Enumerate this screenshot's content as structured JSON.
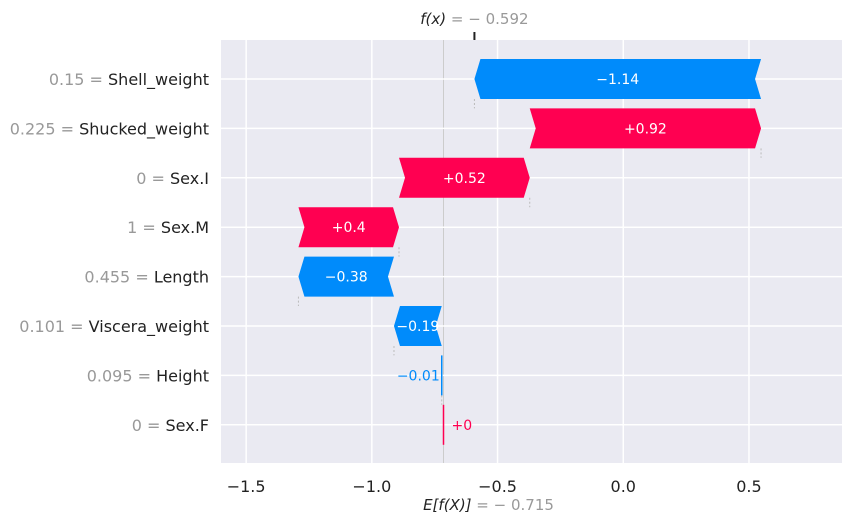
{
  "chart_data": {
    "type": "waterfall",
    "fx_label": "f(x)",
    "fx_value_text": " = − 0.592",
    "efx_label": "E[f(X)]",
    "efx_value_text": " = − 0.715",
    "base_value": -0.715,
    "final_value": -0.592,
    "xlim": [
      -1.6,
      0.87
    ],
    "xticks": [
      -1.5,
      -1.0,
      -0.5,
      0.0,
      0.5
    ],
    "xtick_labels": [
      "−1.5",
      "−1.0",
      "−0.5",
      "0.0",
      "0.5"
    ],
    "grid": true,
    "colors": {
      "positive": "#ff0051",
      "negative": "#008bfb",
      "background": "#eaeaf2",
      "grid": "#ffffff",
      "value_label": "#999999",
      "text": "#222222"
    },
    "features": [
      {
        "value": "0.15",
        "name": "Shell_weight",
        "shap": -1.14,
        "label": "−1.14",
        "start": 0.548,
        "end": -0.592
      },
      {
        "value": "0.225",
        "name": "Shucked_weight",
        "shap": 0.92,
        "label": "+0.92",
        "start": -0.372,
        "end": 0.548
      },
      {
        "value": "0",
        "name": "Sex.I",
        "shap": 0.52,
        "label": "+0.52",
        "start": -0.892,
        "end": -0.372
      },
      {
        "value": "1",
        "name": "Sex.M",
        "shap": 0.4,
        "label": "+0.4",
        "start": -1.292,
        "end": -0.892
      },
      {
        "value": "0.455",
        "name": "Length",
        "shap": -0.38,
        "label": "−0.38",
        "start": -0.912,
        "end": -1.292
      },
      {
        "value": "0.101",
        "name": "Viscera_weight",
        "shap": -0.19,
        "label": "−0.19",
        "start": -0.722,
        "end": -0.912
      },
      {
        "value": "0.095",
        "name": "Height",
        "shap": -0.01,
        "label": "−0.01",
        "start": -0.715,
        "end": -0.722
      },
      {
        "value": "0",
        "name": "Sex.F",
        "shap": 0.0,
        "label": "+0",
        "start": -0.715,
        "end": -0.715
      }
    ]
  }
}
